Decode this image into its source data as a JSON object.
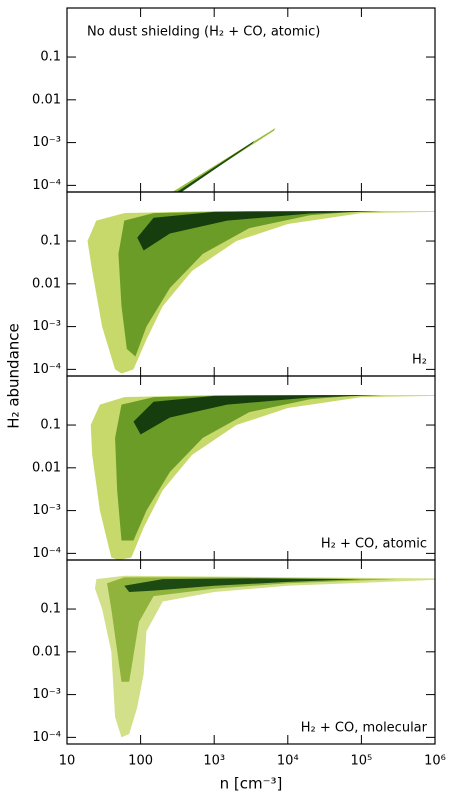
{
  "chart_data": [
    {
      "type": "density",
      "title": "No dust shielding (H₂ + CO, atomic)",
      "log_x": true,
      "log_y": true,
      "xlim": [
        10,
        1000000
      ],
      "ylim": [
        7e-05,
        1.4
      ],
      "xticks": [
        10,
        100,
        1000,
        10000,
        100000,
        1000000
      ],
      "yticks": [
        {
          "value": 0.0001,
          "label": "10⁻⁴"
        },
        {
          "value": 0.001,
          "label": "10⁻³"
        },
        0.01,
        0.1
      ],
      "layers": [
        {
          "color": "#9bbf3a",
          "x": [
            270,
            6800,
            6500,
            330
          ],
          "y": [
            7e-05,
            0.0022,
            0.0019,
            7e-05
          ]
        },
        {
          "color": "#1d4a12",
          "x": [
            310,
            3500,
            3300,
            360
          ],
          "y": [
            7e-05,
            0.0011,
            0.00095,
            7e-05
          ]
        }
      ]
    },
    {
      "type": "density",
      "label": "H₂",
      "ylabel": "H₂ abundance",
      "log_x": true,
      "log_y": true,
      "xlim": [
        10,
        1000000
      ],
      "ylim": [
        7e-05,
        1.4
      ],
      "xticks": [
        10,
        100,
        1000,
        10000,
        100000,
        1000000
      ],
      "yticks": [
        {
          "value": 0.0001,
          "label": "10⁻⁴"
        },
        {
          "value": 0.001,
          "label": "10⁻³"
        },
        0.01,
        0.1
      ],
      "layers": [
        {
          "color": "#c6d96a",
          "x": [
            45,
            30,
            22,
            19,
            25,
            60,
            1000,
            1000000,
            1000000,
            100000,
            10000,
            2000,
            500,
            200,
            120,
            80,
            55
          ],
          "y": [
            0.0001,
            0.001,
            0.02,
            0.1,
            0.3,
            0.45,
            0.5,
            0.5,
            0.48,
            0.45,
            0.25,
            0.1,
            0.02,
            0.003,
            0.0005,
            0.0001,
            8e-05
          ]
        },
        {
          "color": "#6c9c28",
          "x": [
            65,
            55,
            50,
            60,
            150,
            3000,
            100000,
            20000,
            3000,
            700,
            250,
            120,
            85
          ],
          "y": [
            0.0003,
            0.003,
            0.05,
            0.3,
            0.45,
            0.5,
            0.5,
            0.4,
            0.2,
            0.05,
            0.008,
            0.001,
            0.0002
          ]
        },
        {
          "color": "#163d0d",
          "x": [
            90,
            150,
            1000,
            30000,
            200000,
            20000,
            1500,
            250,
            110
          ],
          "y": [
            0.12,
            0.35,
            0.48,
            0.5,
            0.5,
            0.44,
            0.3,
            0.15,
            0.06
          ]
        }
      ]
    },
    {
      "type": "density",
      "label": "H₂ + CO, atomic",
      "log_x": true,
      "log_y": true,
      "xlim": [
        10,
        1000000
      ],
      "ylim": [
        7e-05,
        1.4
      ],
      "xticks": [
        10,
        100,
        1000,
        10000,
        100000,
        1000000
      ],
      "yticks": [
        {
          "value": 0.0001,
          "label": "10⁻⁴"
        },
        {
          "value": 0.001,
          "label": "10⁻³"
        },
        0.01,
        0.1
      ],
      "layers": [
        {
          "color": "#c6d96a",
          "x": [
            40,
            28,
            22,
            21,
            28,
            60,
            1000,
            1000000,
            1000000,
            100000,
            10000,
            2000,
            500,
            200,
            110,
            75,
            50
          ],
          "y": [
            8e-05,
            0.001,
            0.02,
            0.1,
            0.3,
            0.45,
            0.5,
            0.5,
            0.48,
            0.45,
            0.25,
            0.1,
            0.02,
            0.003,
            0.0004,
            8e-05,
            7e-05
          ]
        },
        {
          "color": "#6c9c28",
          "x": [
            55,
            48,
            45,
            55,
            150,
            3000,
            100000,
            20000,
            3000,
            700,
            250,
            120,
            80
          ],
          "y": [
            0.0002,
            0.003,
            0.05,
            0.3,
            0.45,
            0.5,
            0.5,
            0.4,
            0.2,
            0.05,
            0.008,
            0.001,
            0.0002
          ]
        },
        {
          "color": "#163d0d",
          "x": [
            80,
            150,
            1000,
            30000,
            200000,
            20000,
            1500,
            250,
            100
          ],
          "y": [
            0.12,
            0.35,
            0.48,
            0.5,
            0.5,
            0.44,
            0.3,
            0.15,
            0.06
          ]
        }
      ]
    },
    {
      "type": "density",
      "label": "H₂ + CO, molecular",
      "xlabel": "n [cm⁻³]",
      "log_x": true,
      "log_y": true,
      "xlim": [
        10,
        1000000
      ],
      "ylim": [
        7e-05,
        1.4
      ],
      "xticks": [
        10,
        100,
        {
          "value": 1000,
          "label": "10³"
        },
        {
          "value": 10000,
          "label": "10⁴"
        },
        {
          "value": 100000,
          "label": "10⁵"
        },
        {
          "value": 1000000,
          "label": "10⁶"
        }
      ],
      "yticks": [
        {
          "value": 0.0001,
          "label": "10⁻⁴"
        },
        {
          "value": 0.001,
          "label": "10⁻³"
        },
        0.01,
        0.1
      ],
      "layers": [
        {
          "color": "#d2e08a",
          "x": [
            25,
            60,
            1000000,
            1000000,
            10000,
            1000,
            200,
            120,
            110,
            90,
            70,
            55,
            45,
            40,
            30,
            24
          ],
          "y": [
            0.5,
            0.6,
            0.52,
            0.48,
            0.35,
            0.25,
            0.15,
            0.03,
            0.003,
            0.0005,
            0.00012,
            0.0001,
            0.0003,
            0.01,
            0.1,
            0.3
          ]
        },
        {
          "color": "#8fb33c",
          "x": [
            35,
            60,
            1000,
            300000,
            10000,
            1000,
            150,
            95,
            70,
            55,
            40
          ],
          "y": [
            0.4,
            0.55,
            0.55,
            0.5,
            0.4,
            0.3,
            0.2,
            0.05,
            0.002,
            0.002,
            0.1
          ]
        },
        {
          "color": "#1d4a12",
          "x": [
            60,
            200,
            3000,
            100000,
            10000,
            1000,
            150,
            70
          ],
          "y": [
            0.35,
            0.5,
            0.52,
            0.5,
            0.43,
            0.35,
            0.27,
            0.25
          ]
        }
      ]
    }
  ]
}
